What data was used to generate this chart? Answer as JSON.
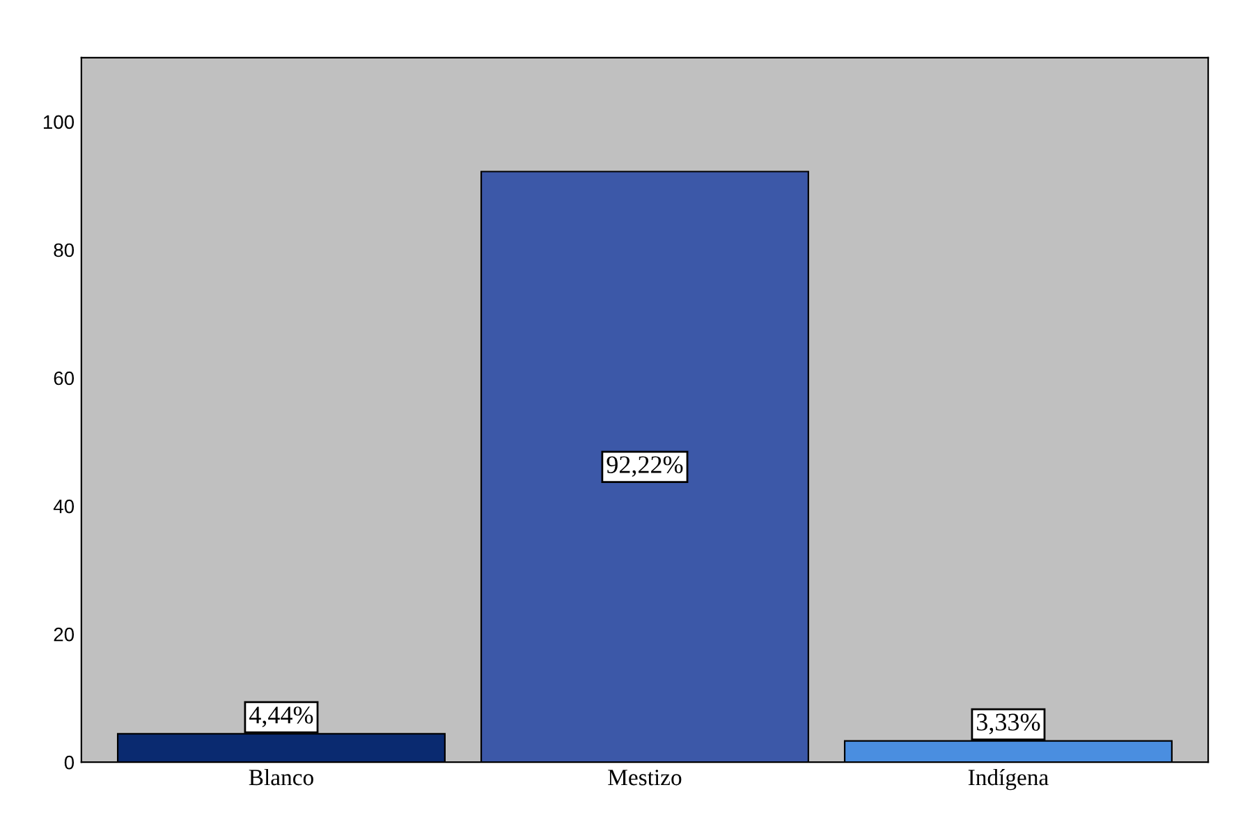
{
  "chart_data": {
    "type": "bar",
    "categories": [
      "Blanco",
      "Mestizo",
      "Indígena"
    ],
    "values": [
      4.44,
      92.22,
      3.33
    ],
    "colors": [
      "#0a2a70",
      "#3c58a8",
      "#4a8ee0"
    ],
    "value_labels": [
      "4,44%",
      "92,22%",
      "3,33%"
    ],
    "ylim": [
      0,
      110
    ],
    "yticks": [
      0,
      20,
      40,
      60,
      80,
      100
    ],
    "grid": false,
    "legend": false
  }
}
